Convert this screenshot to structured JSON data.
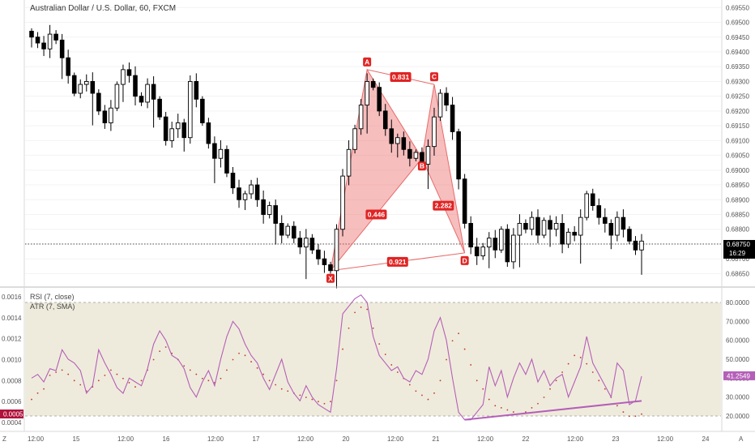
{
  "chart_title": "Australian Dollar / U.S. Dollar, 60, FXCM",
  "colors": {
    "candle": "#000000",
    "pattern_fill": "rgba(236,100,100,0.42)",
    "pattern_line": "#e86b6b",
    "label_bg": "#e02424",
    "rsi_line": "#b45fb8",
    "atr_dots": "#c0392b",
    "rsi_band": "#efebdc",
    "divergence": "#b45fb8",
    "price_badge": "#000000",
    "atr_badge": "#b0123a",
    "rsi_badge": "#b45fb8"
  },
  "indicators": {
    "rsi_label": "RSI (7, close)",
    "atr_label": "ATR (7, SMA)",
    "atr_current": "0.0005",
    "rsi_current": "41.2549"
  },
  "price_badge": {
    "price": "0.68750",
    "time": "16:29"
  },
  "axis": {
    "z_label": "Z",
    "a_label": "A",
    "x_ticks": [
      "12:00",
      "15",
      "12:00",
      "16",
      "12:00",
      "17",
      "12:00",
      "20",
      "12:00",
      "21",
      "12:00",
      "22",
      "12:00",
      "23",
      "12:00",
      "24"
    ]
  },
  "chart_data": [
    {
      "type": "candlestick",
      "title": "Australian Dollar / U.S. Dollar, 60, FXCM",
      "symbol": "AUDUSD",
      "timeframe": "60",
      "ylim": [
        0.6861,
        0.6957
      ],
      "y_ticks": [
        "0.69550",
        "0.69500",
        "0.69450",
        "0.69400",
        "0.69350",
        "0.69300",
        "0.69250",
        "0.69200",
        "0.69150",
        "0.69100",
        "0.69050",
        "0.69000",
        "0.68950",
        "0.68900",
        "0.68850",
        "0.68800",
        "0.68750",
        "0.68700",
        "0.68650"
      ],
      "current_price": 0.6875,
      "close_path": [
        0.6945,
        0.6943,
        0.6941,
        0.6946,
        0.6944,
        0.6938,
        0.6932,
        0.6926,
        0.6929,
        0.693,
        0.6926,
        0.692,
        0.6916,
        0.6921,
        0.6929,
        0.6934,
        0.6932,
        0.6925,
        0.6923,
        0.6929,
        0.6924,
        0.6918,
        0.691,
        0.6914,
        0.6916,
        0.6911,
        0.693,
        0.6924,
        0.6916,
        0.6909,
        0.6904,
        0.6907,
        0.6899,
        0.6894,
        0.689,
        0.6892,
        0.6895,
        0.689,
        0.6885,
        0.6888,
        0.6882,
        0.6878,
        0.6881,
        0.6877,
        0.6874,
        0.6877,
        0.6873,
        0.687,
        0.6868,
        0.6866,
        0.688,
        0.6898,
        0.6907,
        0.6914,
        0.6922,
        0.693,
        0.6928,
        0.692,
        0.6914,
        0.6909,
        0.6911,
        0.6907,
        0.6904,
        0.6906,
        0.6902,
        0.6908,
        0.6918,
        0.6926,
        0.6922,
        0.6913,
        0.6897,
        0.6882,
        0.6874,
        0.6871,
        0.6874,
        0.6877,
        0.6873,
        0.688,
        0.6869,
        0.6878,
        0.6882,
        0.688,
        0.6884,
        0.6878,
        0.6883,
        0.688,
        0.6882,
        0.6875,
        0.6879,
        0.6878,
        0.6884,
        0.6892,
        0.6888,
        0.6884,
        0.6882,
        0.6878,
        0.6884,
        0.688,
        0.6876,
        0.6873,
        0.6876
      ],
      "harmonic_pattern": {
        "points": [
          {
            "label": "X",
            "price": 0.6866
          },
          {
            "label": "A",
            "price": 0.6934
          },
          {
            "label": "B",
            "price": 0.6904
          },
          {
            "label": "C",
            "price": 0.6929
          },
          {
            "label": "D",
            "price": 0.6872
          }
        ],
        "ratios": [
          {
            "label": "0.831",
            "from": "A",
            "to": "C"
          },
          {
            "label": "0.446",
            "from": "X",
            "to": "B"
          },
          {
            "label": "2.282",
            "from": "B",
            "to": "D"
          },
          {
            "label": "0.921",
            "from": "X",
            "to": "D"
          }
        ]
      }
    },
    {
      "type": "line",
      "title": "RSI (7, close)",
      "y_ticks": [
        "80.0000",
        "70.0000",
        "60.0000",
        "50.0000",
        "40.0000",
        "30.0000",
        "20.0000"
      ],
      "band": [
        20,
        80
      ],
      "current": 41.2549,
      "values": [
        40,
        42,
        38,
        45,
        44,
        55,
        50,
        48,
        44,
        32,
        36,
        55,
        48,
        42,
        35,
        32,
        40,
        38,
        36,
        45,
        58,
        65,
        60,
        52,
        50,
        45,
        35,
        30,
        38,
        44,
        36,
        50,
        62,
        70,
        66,
        58,
        52,
        48,
        40,
        34,
        42,
        50,
        38,
        32,
        28,
        36,
        30,
        26,
        24,
        22,
        45,
        74,
        78,
        82,
        84,
        80,
        62,
        52,
        48,
        44,
        46,
        40,
        38,
        44,
        42,
        50,
        65,
        72,
        60,
        40,
        22,
        18,
        18,
        22,
        26,
        46,
        36,
        44,
        30,
        40,
        48,
        42,
        50,
        38,
        44,
        36,
        40,
        42,
        30,
        38,
        46,
        62,
        48,
        42,
        36,
        30,
        48,
        44,
        26,
        28,
        41
      ]
    },
    {
      "type": "scatter",
      "title": "ATR (7, SMA)",
      "y_ticks": [
        "0.0016",
        "0.0014",
        "0.0012",
        "0.0010",
        "0.0008",
        "0.0006",
        "0.0004"
      ],
      "current": 0.0005,
      "values": [
        0.00062,
        0.00068,
        0.00072,
        0.00085,
        0.00088,
        0.0009,
        0.00086,
        0.0008,
        0.00076,
        0.0007,
        0.00074,
        0.0008,
        0.00085,
        0.0009,
        0.00086,
        0.00082,
        0.00078,
        0.00074,
        0.0008,
        0.0009,
        0.001,
        0.00108,
        0.00112,
        0.00106,
        0.001,
        0.00094,
        0.0009,
        0.00086,
        0.00082,
        0.0008,
        0.00078,
        0.00082,
        0.0009,
        0.001,
        0.00106,
        0.00104,
        0.00098,
        0.00092,
        0.00086,
        0.0008,
        0.00076,
        0.00072,
        0.0007,
        0.00068,
        0.00066,
        0.00064,
        0.00062,
        0.0006,
        0.00058,
        0.0006,
        0.0008,
        0.0011,
        0.0013,
        0.00145,
        0.0015,
        0.00148,
        0.0013,
        0.00115,
        0.00105,
        0.00095,
        0.00088,
        0.00082,
        0.00076,
        0.0007,
        0.00066,
        0.00062,
        0.00068,
        0.0008,
        0.001,
        0.00118,
        0.00125,
        0.0011,
        0.00095,
        0.0008,
        0.00072,
        0.00062,
        0.00056,
        0.00054,
        0.00052,
        0.0005,
        0.00048,
        0.0005,
        0.00054,
        0.00058,
        0.00064,
        0.00072,
        0.0008,
        0.00088,
        0.00096,
        0.00104,
        0.00102,
        0.00096,
        0.00088,
        0.0008,
        0.00072,
        0.00064,
        0.00056,
        0.0005,
        0.00046,
        0.00046,
        0.00048
      ]
    }
  ]
}
